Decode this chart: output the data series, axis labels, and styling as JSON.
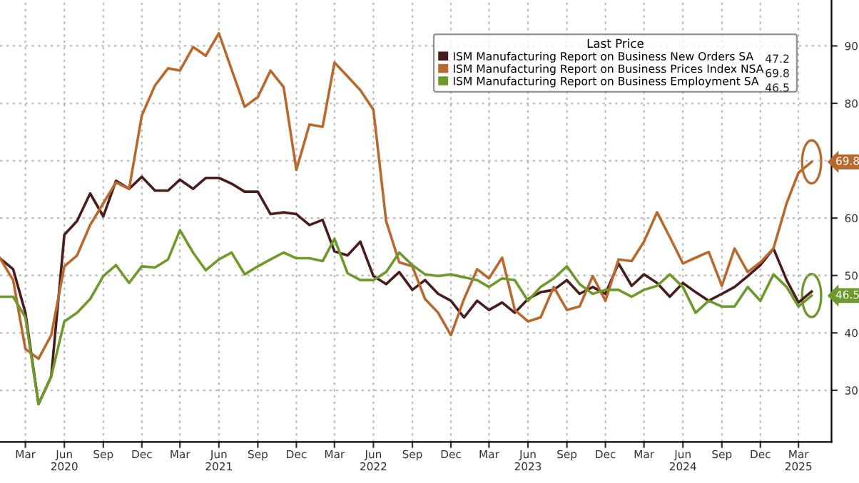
{
  "chart_data": {
    "type": "line",
    "x": [
      "2020-01",
      "2020-02",
      "2020-03",
      "2020-04",
      "2020-05",
      "2020-06",
      "2020-07",
      "2020-08",
      "2020-09",
      "2020-10",
      "2020-11",
      "2020-12",
      "2021-01",
      "2021-02",
      "2021-03",
      "2021-04",
      "2021-05",
      "2021-06",
      "2021-07",
      "2021-08",
      "2021-09",
      "2021-10",
      "2021-11",
      "2021-12",
      "2022-01",
      "2022-02",
      "2022-03",
      "2022-04",
      "2022-05",
      "2022-06",
      "2022-07",
      "2022-08",
      "2022-09",
      "2022-10",
      "2022-11",
      "2022-12",
      "2023-01",
      "2023-02",
      "2023-03",
      "2023-04",
      "2023-05",
      "2023-06",
      "2023-07",
      "2023-08",
      "2023-09",
      "2023-10",
      "2023-11",
      "2023-12",
      "2024-01",
      "2024-02",
      "2024-03",
      "2024-04",
      "2024-05",
      "2024-06",
      "2024-07",
      "2024-08",
      "2024-09",
      "2024-10",
      "2024-11",
      "2024-12",
      "2025-01",
      "2025-02",
      "2025-03",
      "2025-04"
    ],
    "series": [
      {
        "name": "ISM Manufacturing Report on Business New Orders SA",
        "color": "#4a1c1c",
        "values": [
          53.0,
          51.1,
          43.5,
          27.6,
          32.4,
          57.1,
          59.5,
          64.3,
          60.3,
          66.5,
          65.1,
          67.2,
          64.8,
          64.8,
          66.7,
          65.1,
          67.0,
          67.0,
          66.0,
          64.6,
          64.6,
          60.7,
          61.0,
          60.7,
          58.8,
          59.7,
          54.2,
          53.5,
          55.9,
          49.9,
          48.5,
          50.6,
          47.5,
          49.2,
          46.8,
          45.6,
          42.7,
          45.6,
          44.0,
          45.3,
          43.5,
          45.9,
          47.1,
          47.5,
          49.2,
          46.8,
          48.0,
          46.8,
          52.1,
          48.2,
          50.2,
          48.7,
          46.3,
          48.7,
          47.1,
          45.6,
          46.8,
          48.0,
          49.9,
          51.8,
          54.7,
          49.2,
          45.3,
          47.2
        ]
      },
      {
        "name": "ISM Manufacturing Report on Business Prices Index NSA",
        "color": "#b8692e",
        "values": [
          53.0,
          49.2,
          37.2,
          35.5,
          39.6,
          51.6,
          53.5,
          58.8,
          62.6,
          66.2,
          65.1,
          77.9,
          83.1,
          86.1,
          85.7,
          89.8,
          88.3,
          92.2,
          85.9,
          79.4,
          81.1,
          85.7,
          82.8,
          68.4,
          76.3,
          75.9,
          87.1,
          84.7,
          82.3,
          78.9,
          59.5,
          52.3,
          51.6,
          45.9,
          43.5,
          39.6,
          45.9,
          51.1,
          49.5,
          53.1,
          44.0,
          42.0,
          42.7,
          48.0,
          44.0,
          44.6,
          49.9,
          45.6,
          52.8,
          52.5,
          55.9,
          61.0,
          56.7,
          52.1,
          53.1,
          54.1,
          48.2,
          54.7,
          50.6,
          52.3,
          54.7,
          62.6,
          67.9,
          69.8
        ]
      },
      {
        "name": "ISM Manufacturing Report on Business Employment SA",
        "color": "#6e9a2c",
        "values": [
          46.3,
          46.3,
          42.7,
          27.6,
          32.4,
          42.0,
          43.5,
          45.9,
          49.9,
          51.8,
          48.7,
          51.6,
          51.4,
          52.8,
          57.9,
          54.0,
          50.9,
          52.8,
          54.0,
          50.2,
          51.6,
          52.8,
          54.0,
          53.0,
          53.0,
          52.5,
          56.4,
          50.4,
          49.2,
          49.2,
          50.6,
          54.0,
          51.8,
          50.2,
          49.9,
          50.2,
          49.7,
          49.2,
          48.0,
          49.5,
          49.2,
          45.6,
          48.0,
          49.5,
          51.6,
          48.5,
          46.8,
          47.5,
          47.5,
          46.3,
          47.5,
          48.2,
          50.2,
          48.0,
          43.5,
          45.6,
          44.6,
          44.6,
          48.0,
          45.6,
          50.2,
          48.0,
          44.6,
          46.5
        ]
      }
    ],
    "legend_title": "Last Price",
    "annotations": [
      "47.2",
      "69.8",
      "46.5",
      {
        "text": "69.8",
        "x": "2025-04",
        "y": 69.8
      },
      {
        "text": "46.5",
        "x": "2025-04",
        "y": 46.5
      }
    ],
    "xlim": [
      "2020-01-01",
      "2025-05-18"
    ],
    "xticks": [
      {
        "value": "2020-03",
        "label": "Mar"
      },
      {
        "value": "2020-06",
        "label": "Jun\n2020"
      },
      {
        "value": "2020-09",
        "label": "Sep"
      },
      {
        "value": "2020-12",
        "label": "Dec"
      },
      {
        "value": "2021-03",
        "label": "Mar"
      },
      {
        "value": "2021-06",
        "label": "Jun\n2021"
      },
      {
        "value": "2021-09",
        "label": "Sep"
      },
      {
        "value": "2021-12",
        "label": "Dec"
      },
      {
        "value": "2022-03",
        "label": "Mar"
      },
      {
        "value": "2022-06",
        "label": "Jun\n2022"
      },
      {
        "value": "2022-09",
        "label": "Sep"
      },
      {
        "value": "2022-12",
        "label": "Dec"
      },
      {
        "value": "2023-03",
        "label": "Mar"
      },
      {
        "value": "2023-06",
        "label": "Jun\n2023"
      },
      {
        "value": "2023-09",
        "label": "Sep"
      },
      {
        "value": "2023-12",
        "label": "Dec"
      },
      {
        "value": "2024-03",
        "label": "Mar"
      },
      {
        "value": "2024-06",
        "label": "Jun\n2024"
      },
      {
        "value": "2024-09",
        "label": "Sep"
      },
      {
        "value": "2024-12",
        "label": "Dec"
      },
      {
        "value": "2025-03",
        "label": "Mar\n2025"
      }
    ],
    "ylim": [
      21,
      98
    ],
    "yticks": [
      30,
      40,
      50,
      60,
      {
        "value": 70,
        "label": null
      },
      80,
      90
    ],
    "grid": true,
    "legend": "top right",
    "line_style": "solid",
    "marker": "none"
  }
}
